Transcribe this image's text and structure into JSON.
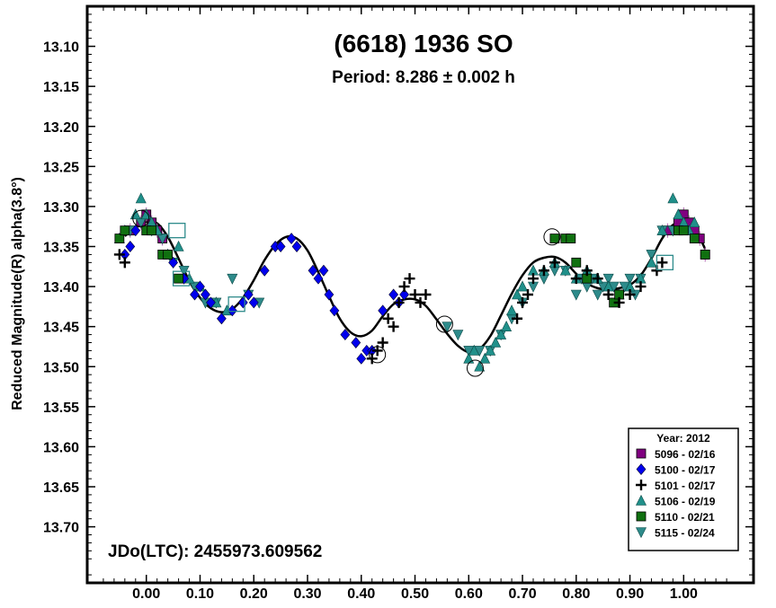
{
  "chart_data": {
    "type": "scatter",
    "title": "(6618) 1936 SO",
    "subtitle": "Period: 8.286 ± 0.002 h",
    "xlabel": "",
    "ylabel": "Reduced Magnitude(R) alpha(3.8°)",
    "annotation": "JDo(LTC): 2455973.609562",
    "xlim": [
      -0.11,
      1.13
    ],
    "ylim": [
      13.05,
      13.77
    ],
    "y_inverted": true,
    "xticks": [
      0.0,
      0.1,
      0.2,
      0.3,
      0.4,
      0.5,
      0.6,
      0.7,
      0.8,
      0.9,
      1.0
    ],
    "xtick_labels": [
      "0.00",
      "0.10",
      "0.20",
      "0.30",
      "0.40",
      "0.50",
      "0.60",
      "0.70",
      "0.80",
      "0.90",
      "1.00"
    ],
    "yticks": [
      13.1,
      13.15,
      13.2,
      13.25,
      13.3,
      13.35,
      13.4,
      13.45,
      13.5,
      13.55,
      13.6,
      13.65,
      13.7
    ],
    "ytick_labels": [
      "13.10",
      "13.15",
      "13.20",
      "13.25",
      "13.30",
      "13.35",
      "13.40",
      "13.45",
      "13.50",
      "13.55",
      "13.60",
      "13.65",
      "13.70"
    ],
    "grid": false,
    "legend_title": "Year: 2012",
    "legend_position": "bottom-right",
    "series": [
      {
        "name": "5096 - 02/16",
        "marker": "square",
        "color": "#800080",
        "x": [
          -0.03,
          -0.01,
          0.0,
          0.01,
          0.02,
          0.03,
          0.97,
          0.99,
          1.0,
          1.01,
          1.02,
          1.03,
          1.04
        ],
        "y": [
          13.33,
          13.32,
          13.31,
          13.32,
          13.33,
          13.34,
          13.33,
          13.32,
          13.31,
          13.32,
          13.33,
          13.34,
          13.36
        ]
      },
      {
        "name": "5100 - 02/17",
        "marker": "diamond",
        "color": "#0000ee",
        "x": [
          -0.04,
          -0.03,
          -0.02,
          0.05,
          0.07,
          0.09,
          0.1,
          0.11,
          0.12,
          0.14,
          0.16,
          0.18,
          0.19,
          0.2,
          0.22,
          0.24,
          0.25,
          0.27,
          0.28,
          0.31,
          0.32,
          0.33,
          0.34,
          0.35,
          0.37,
          0.39,
          0.4,
          0.41,
          0.42,
          0.44,
          0.46,
          0.47,
          0.48
        ],
        "y": [
          13.36,
          13.35,
          13.33,
          13.37,
          13.39,
          13.41,
          13.4,
          13.41,
          13.42,
          13.44,
          13.43,
          13.42,
          13.41,
          13.42,
          13.38,
          13.35,
          13.35,
          13.34,
          13.35,
          13.38,
          13.39,
          13.38,
          13.41,
          13.43,
          13.46,
          13.47,
          13.49,
          13.48,
          13.48,
          13.43,
          13.41,
          13.42,
          13.41
        ]
      },
      {
        "name": "5101 - 02/17",
        "marker": "plus",
        "color": "#000000",
        "x": [
          -0.05,
          -0.04,
          0.42,
          0.43,
          0.44,
          0.45,
          0.46,
          0.47,
          0.48,
          0.49,
          0.5,
          0.51,
          0.52,
          0.69,
          0.7,
          0.71,
          0.72,
          0.74,
          0.76,
          0.8,
          0.82,
          0.84,
          0.86,
          0.88,
          0.9,
          0.92,
          0.95,
          0.96
        ],
        "y": [
          13.36,
          13.37,
          13.49,
          13.48,
          13.47,
          13.44,
          13.45,
          13.42,
          13.4,
          13.39,
          13.41,
          13.42,
          13.41,
          13.44,
          13.42,
          13.41,
          13.39,
          13.38,
          13.37,
          13.39,
          13.38,
          13.39,
          13.41,
          13.42,
          13.41,
          13.4,
          13.38,
          13.37
        ]
      },
      {
        "name": "5106 - 02/19",
        "marker": "triangle-up",
        "color": "#20908a",
        "x": [
          -0.05,
          -0.04,
          -0.02,
          -0.01,
          0.0,
          0.01,
          0.02,
          0.04,
          0.06,
          0.08,
          0.1,
          0.13,
          0.15,
          0.6,
          0.61,
          0.62,
          0.63,
          0.64,
          0.65,
          0.66,
          0.67,
          0.68,
          0.69,
          0.7,
          0.72,
          0.74,
          0.76,
          0.78,
          0.8,
          0.82,
          0.84,
          0.86,
          0.88,
          0.9,
          0.92,
          0.94,
          0.96,
          0.98,
          0.99,
          1.0,
          1.01,
          1.02
        ],
        "y": [
          13.34,
          13.33,
          13.31,
          13.29,
          13.31,
          13.32,
          13.33,
          13.36,
          13.35,
          13.39,
          13.4,
          13.42,
          13.43,
          13.49,
          13.48,
          13.5,
          13.49,
          13.48,
          13.47,
          13.46,
          13.45,
          13.43,
          13.41,
          13.4,
          13.38,
          13.38,
          13.37,
          13.38,
          13.39,
          13.38,
          13.39,
          13.4,
          13.41,
          13.4,
          13.39,
          13.37,
          13.33,
          13.29,
          13.31,
          13.32,
          13.33,
          13.32
        ]
      },
      {
        "name": "5110 - 02/21",
        "marker": "square",
        "color": "#107010",
        "x": [
          -0.05,
          -0.04,
          0.0,
          0.01,
          0.03,
          0.04,
          0.06,
          0.76,
          0.78,
          0.79,
          0.8,
          0.82,
          0.87,
          0.88,
          0.99,
          1.0,
          1.02,
          1.04
        ],
        "y": [
          13.34,
          13.33,
          13.33,
          13.33,
          13.36,
          13.36,
          13.39,
          13.34,
          13.34,
          13.34,
          13.37,
          13.39,
          13.42,
          13.41,
          13.33,
          13.33,
          13.34,
          13.36
        ]
      },
      {
        "name": "5115 - 02/24",
        "marker": "triangle-down",
        "color": "#2e8b8b",
        "x": [
          -0.03,
          -0.01,
          0.01,
          0.03,
          0.05,
          0.07,
          0.09,
          0.11,
          0.13,
          0.16,
          0.19,
          0.21,
          0.56,
          0.58,
          0.6,
          0.62,
          0.64,
          0.66,
          0.68,
          0.7,
          0.72,
          0.74,
          0.76,
          0.78,
          0.8,
          0.81,
          0.82,
          0.83,
          0.84,
          0.85,
          0.86,
          0.87,
          0.88,
          0.89,
          0.9,
          0.91,
          0.92,
          0.94,
          0.96,
          0.98
        ],
        "y": [
          13.33,
          13.32,
          13.33,
          13.34,
          13.37,
          13.38,
          13.4,
          13.42,
          13.42,
          13.39,
          13.41,
          13.42,
          13.45,
          13.46,
          13.48,
          13.48,
          13.48,
          13.46,
          13.44,
          13.42,
          13.4,
          13.39,
          13.38,
          13.38,
          13.41,
          13.39,
          13.4,
          13.39,
          13.41,
          13.4,
          13.39,
          13.4,
          13.41,
          13.4,
          13.39,
          13.41,
          13.39,
          13.36,
          13.33,
          13.33
        ]
      }
    ],
    "fit_curve": {
      "x": [
        -0.04,
        -0.02,
        0.0,
        0.02,
        0.04,
        0.06,
        0.08,
        0.1,
        0.12,
        0.14,
        0.16,
        0.18,
        0.2,
        0.22,
        0.24,
        0.26,
        0.28,
        0.3,
        0.32,
        0.34,
        0.36,
        0.38,
        0.4,
        0.42,
        0.44,
        0.46,
        0.48,
        0.5,
        0.52,
        0.54,
        0.56,
        0.58,
        0.6,
        0.62,
        0.64,
        0.66,
        0.68,
        0.7,
        0.72,
        0.74,
        0.76,
        0.78,
        0.8,
        0.82,
        0.84,
        0.86,
        0.88,
        0.9,
        0.92,
        0.94,
        0.96,
        0.98,
        1.0,
        1.02,
        1.04
      ],
      "y": [
        13.337,
        13.326,
        13.319,
        13.321,
        13.338,
        13.365,
        13.393,
        13.414,
        13.427,
        13.432,
        13.428,
        13.414,
        13.392,
        13.367,
        13.348,
        13.338,
        13.34,
        13.355,
        13.382,
        13.412,
        13.44,
        13.457,
        13.462,
        13.455,
        13.437,
        13.422,
        13.416,
        13.416,
        13.424,
        13.441,
        13.459,
        13.474,
        13.482,
        13.478,
        13.462,
        13.436,
        13.409,
        13.386,
        13.37,
        13.364,
        13.363,
        13.37,
        13.384,
        13.396,
        13.402,
        13.404,
        13.402,
        13.398,
        13.386,
        13.365,
        13.34,
        13.323,
        13.319,
        13.327,
        13.353
      ]
    },
    "circled_points": [
      {
        "x": 0.43,
        "y": 13.485
      },
      {
        "x": 0.555,
        "y": 13.447
      },
      {
        "x": 0.612,
        "y": 13.502
      },
      {
        "x": 0.755,
        "y": 13.338
      },
      {
        "x": -0.01,
        "y": 13.315
      }
    ],
    "boxed_points": [
      {
        "x": 0.057,
        "y": 13.33
      },
      {
        "x": 0.065,
        "y": 13.39
      },
      {
        "x": 0.168,
        "y": 13.422
      },
      {
        "x": 0.965,
        "y": 13.37
      }
    ]
  }
}
